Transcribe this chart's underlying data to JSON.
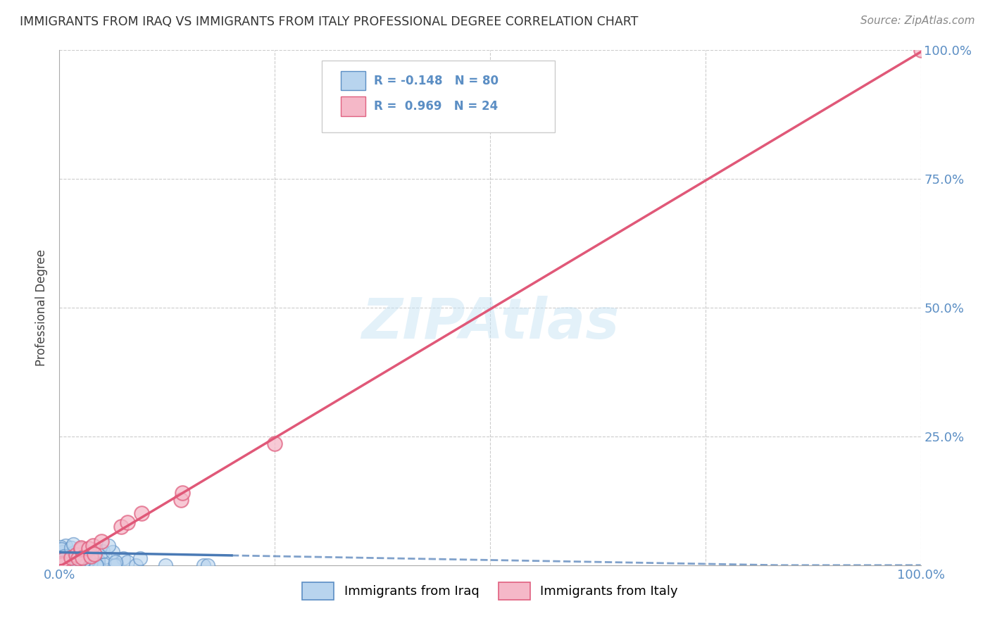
{
  "title": "IMMIGRANTS FROM IRAQ VS IMMIGRANTS FROM ITALY PROFESSIONAL DEGREE CORRELATION CHART",
  "source": "Source: ZipAtlas.com",
  "ylabel": "Professional Degree",
  "xlim": [
    0,
    100
  ],
  "ylim": [
    0,
    100
  ],
  "iraq_color": "#b8d4ee",
  "iraq_edge_color": "#5b8ec4",
  "italy_color": "#f5b8c8",
  "italy_edge_color": "#e06080",
  "iraq_line_color": "#4a7ab5",
  "italy_line_color": "#e05878",
  "iraq_R": -0.148,
  "iraq_N": 80,
  "italy_R": 0.969,
  "italy_N": 24,
  "watermark": "ZIPAtlas",
  "background_color": "#ffffff",
  "grid_color": "#cccccc",
  "legend_label_iraq": "Immigrants from Iraq",
  "legend_label_italy": "Immigrants from Italy"
}
